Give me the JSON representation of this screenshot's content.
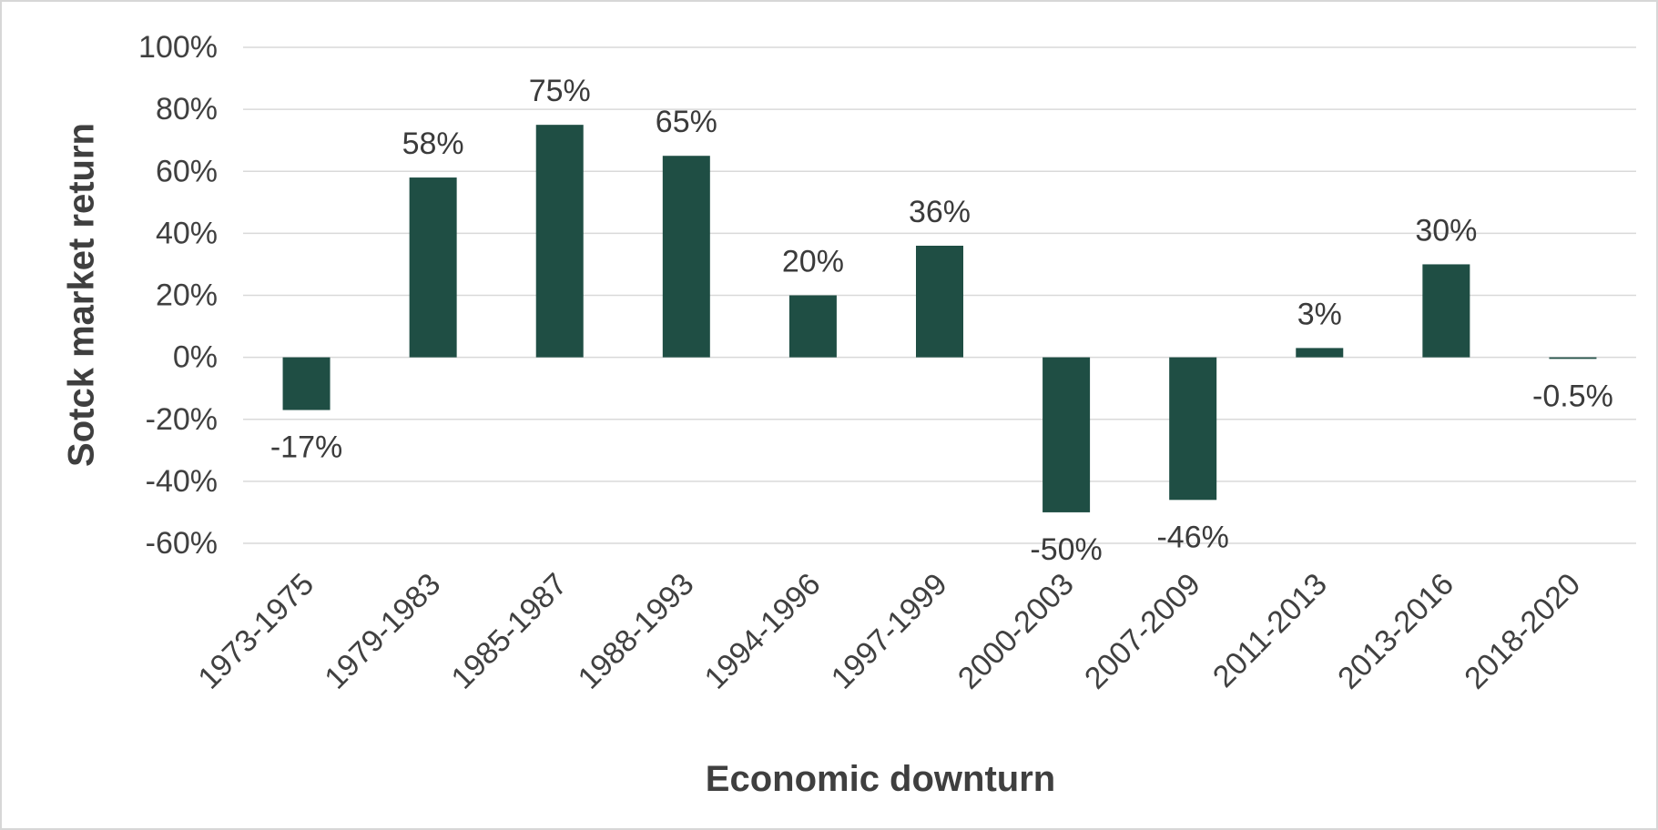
{
  "chart_data": {
    "type": "bar",
    "title": "",
    "xlabel": "Economic downturn",
    "ylabel": "Sotck market return",
    "categories": [
      "1973-1975",
      "1979-1983",
      "1985-1987",
      "1988-1993",
      "1994-1996",
      "1997-1999",
      "2000-2003",
      "2007-2009",
      "2011-2013",
      "2013-2016",
      "2018-2020"
    ],
    "values": [
      -17,
      58,
      75,
      65,
      20,
      36,
      -50,
      -46,
      3,
      30,
      -0.5
    ],
    "value_labels": [
      "-17%",
      "58%",
      "75%",
      "65%",
      "20%",
      "36%",
      "-50%",
      "-46%",
      "3%",
      "30%",
      "-0.5%"
    ],
    "y_ticks": [
      "100%",
      "80%",
      "60%",
      "40%",
      "20%",
      "0%",
      "-20%",
      "-40%",
      "-60%"
    ],
    "y_tick_values": [
      100,
      80,
      60,
      40,
      20,
      0,
      -20,
      -40,
      -60
    ],
    "ylim": [
      -60,
      100
    ],
    "grid": "horizontal",
    "legend": "none",
    "bar_color": "#1f4e44",
    "text_color": "#404040",
    "label_color": "#3b3b3b",
    "grid_color": "#d9d9d9",
    "frame_border_color": "#d7d7d7",
    "background_color": "#ffffff"
  }
}
